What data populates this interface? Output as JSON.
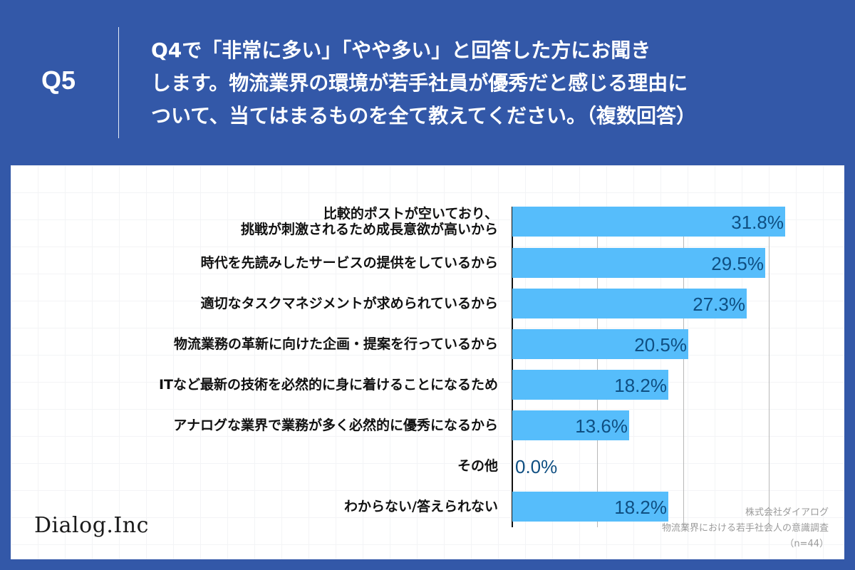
{
  "header": {
    "question_number": "Q5",
    "question_lines": [
      "Q4で「非常に多い」「やや多い」と回答した方にお聞き",
      "します。物流業界の環境が若手社員が優秀だと感じる理由に",
      "ついて、当てはまるものを全て教えてください。（複数回答）"
    ]
  },
  "colors": {
    "background": "#3358a8",
    "bar": "#56bdfb",
    "value_text": "#0f4f82",
    "label_text": "#111111",
    "panel": "#ffffff"
  },
  "chart_data": {
    "type": "bar",
    "orientation": "horizontal",
    "title": "Q4で「非常に多い」「やや多い」と回答した方にお聞きします。物流業界の環境が若手社員が優秀だと感じる理由について、当てはまるものを全て教えてください。（複数回答）",
    "xlabel": "",
    "ylabel": "",
    "unit": "%",
    "xlim": [
      0,
      35
    ],
    "gridlines": [
      10,
      20,
      30
    ],
    "grid": true,
    "legend": null,
    "categories": [
      "比較的ポストが空いており、挑戦が刺激されるため成長意欲が高いから",
      "時代を先読みしたサービスの提供をしているから",
      "適切なタスクマネジメントが求められているから",
      "物流業務の革新に向けた企画・提案を行っているから",
      "ITなど最新の技術を必然的に身に着けることになるため",
      "アナログな業界で業務が多く必然的に優秀になるから",
      "その他",
      "わからない/答えられない"
    ],
    "values": [
      31.8,
      29.5,
      27.3,
      20.5,
      18.2,
      13.6,
      0.0,
      18.2
    ],
    "value_labels": [
      "31.8%",
      "29.5%",
      "27.3%",
      "20.5%",
      "18.2%",
      "13.6%",
      "0.0%",
      "18.2%"
    ],
    "n": 44
  },
  "rows": [
    {
      "label_lines": [
        "比較的ポストが空いており、",
        "挑戦が刺激されるため成長意欲が高いから"
      ],
      "value": "31.8%"
    },
    {
      "label_lines": [
        "時代を先読みしたサービスの提供をしているから"
      ],
      "value": "29.5%"
    },
    {
      "label_lines": [
        "適切なタスクマネジメントが求められているから"
      ],
      "value": "27.3%"
    },
    {
      "label_lines": [
        "物流業務の革新に向けた企画・提案を行っているから"
      ],
      "value": "20.5%"
    },
    {
      "label_lines": [
        "ITなど最新の技術を必然的に身に着けることになるため"
      ],
      "value": "18.2%"
    },
    {
      "label_lines": [
        "アナログな業界で業務が多く必然的に優秀になるから"
      ],
      "value": "13.6%"
    },
    {
      "label_lines": [
        "その他"
      ],
      "value": "0.0%"
    },
    {
      "label_lines": [
        "わからない/答えられない"
      ],
      "value": "18.2%"
    }
  ],
  "footer": {
    "logo": "Dialog.Inc",
    "source_lines": [
      "株式会社ダイアログ",
      "物流業界における若手社会人の意識調査",
      "（n=44）"
    ]
  }
}
